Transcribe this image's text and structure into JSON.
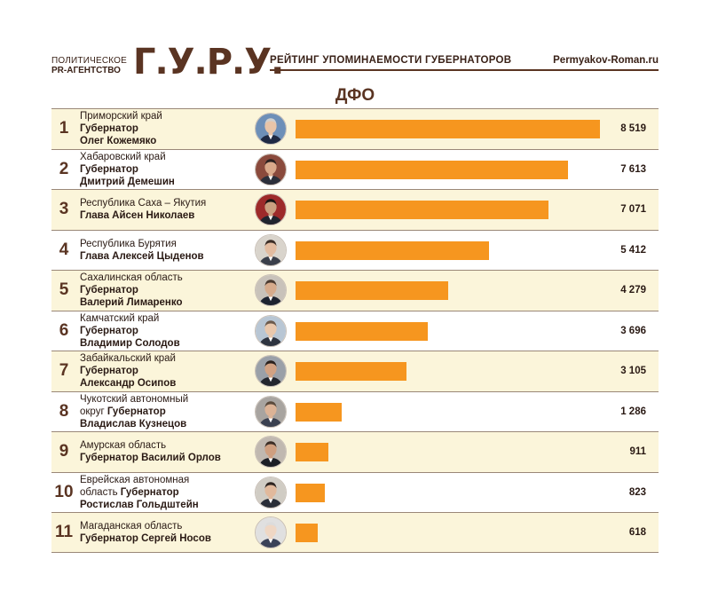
{
  "header": {
    "agency_line1": "ПОЛИТИЧЕСКОЕ",
    "agency_line2": "PR-АГЕНТСТВО",
    "logo": "Г.У.Р.У.",
    "subtitle": "РЕЙТИНГ УПОМИНАЕМОСТИ ГУБЕРНАТОРОВ",
    "site": "Permyakov-Roman.ru"
  },
  "colors": {
    "bar": "#f6961f",
    "text": "#5a3422",
    "shade": "#fbf5da"
  },
  "chart_data": {
    "type": "bar",
    "orientation": "horizontal",
    "title": "ДФО",
    "xlim": [
      0,
      8519
    ],
    "rows": [
      {
        "rank": "1",
        "region": "Приморский край",
        "line2": "Губернатор",
        "line3": "Олег Кожемяко",
        "value": 8519,
        "value_label": "8 519"
      },
      {
        "rank": "2",
        "region": "Хабаровский край",
        "line2": "Губернатор",
        "line3": "Дмитрий Демешин",
        "value": 7613,
        "value_label": "7 613"
      },
      {
        "rank": "3",
        "region": "Республика Саха – Якутия",
        "line2": "Глава Айсен Николаев",
        "line3": "",
        "value": 7071,
        "value_label": "7 071"
      },
      {
        "rank": "4",
        "region": "Республика Бурятия",
        "line2": "Глава Алексей Цыденов",
        "line3": "",
        "value": 5412,
        "value_label": "5 412"
      },
      {
        "rank": "5",
        "region": "Сахалинская область",
        "line2": "Губернатор",
        "line3": "Валерий Лимаренко",
        "value": 4279,
        "value_label": "4 279"
      },
      {
        "rank": "6",
        "region": "Камчатский край",
        "line2": "Губернатор",
        "line3": "Владимир Солодов",
        "value": 3696,
        "value_label": "3 696"
      },
      {
        "rank": "7",
        "region": "Забайкальский край",
        "line2": "Губернатор",
        "line3": "Александр Осипов",
        "value": 3105,
        "value_label": "3 105"
      },
      {
        "rank": "8",
        "region": "Чукотский автономный",
        "region_b": "округ ",
        "line2": "Губернатор",
        "line3": "Владислав Кузнецов",
        "value": 1286,
        "value_label": "1 286"
      },
      {
        "rank": "9",
        "region": "Амурская область",
        "line2": "Губернатор Василий Орлов",
        "line3": "",
        "value": 911,
        "value_label": "911"
      },
      {
        "rank": "10",
        "region": "Еврейская автономная",
        "region_b": "область ",
        "line2": "Губернатор",
        "line3": "Ростислав Гольдштейн",
        "value": 823,
        "value_label": "823"
      },
      {
        "rank": "11",
        "region": "Магаданская область",
        "line2": "Губернатор Сергей Носов",
        "line3": "",
        "value": 618,
        "value_label": "618"
      }
    ]
  }
}
